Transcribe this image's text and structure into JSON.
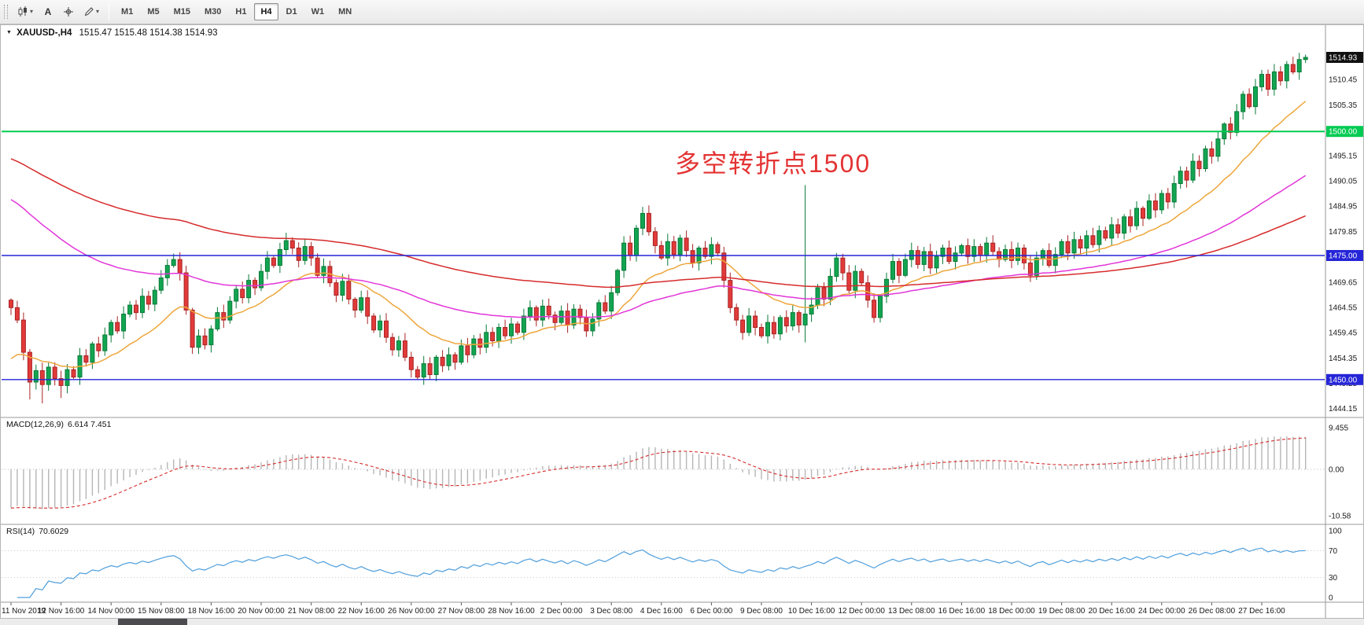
{
  "colors": {
    "up": "#12a551",
    "up_border": "#0a7a38",
    "down": "#e23a3a",
    "down_border": "#a82323",
    "ma_fast": "#eda63c",
    "ma_mid": "#e236d8",
    "ma_slow": "#d62b2b",
    "macd_hist": "#b6b6b6",
    "macd_signal": "#d62b2b",
    "rsi_line": "#4f9fdc",
    "hline_green": "#00cb52",
    "hline_blue": "#2525d8",
    "badge_black": "#101010",
    "badge_text": "#ffffff",
    "axis_text": "#1a1a1a",
    "separator": "#9a9a9a"
  },
  "icons": {
    "triangle_down": "▼",
    "caret_down": "▾"
  },
  "toolbar": {
    "timeframes": [
      "M1",
      "M5",
      "M15",
      "M30",
      "H1",
      "H4",
      "D1",
      "W1",
      "MN"
    ],
    "active_timeframe": "H4",
    "left_buttons": [
      {
        "name": "chart-type-button",
        "icon": "candlestick-chart-icon",
        "label": "",
        "caret": true
      },
      {
        "name": "text-tool-button",
        "icon": "",
        "label": "A",
        "caret": false
      },
      {
        "name": "crosshair-tool-button",
        "icon": "crosshair-icon",
        "label": "",
        "caret": false
      },
      {
        "name": "draw-tool-button",
        "icon": "pencil-icon",
        "label": "",
        "caret": true
      }
    ]
  },
  "chart": {
    "header": {
      "symbol": "XAUUSD-,H4",
      "ohlc": "1515.47 1515.48 1514.38 1514.93"
    },
    "annotation": {
      "text": "多空转折点1500"
    }
  },
  "panels": {
    "macd": {
      "label": "MACD(12,26,9)",
      "values": "6.614 7.451",
      "axis_labels": [
        "9.455",
        "0.00",
        "-10.58"
      ],
      "axis_values": [
        9.455,
        0,
        -10.58
      ]
    },
    "rsi": {
      "label": "RSI(14)",
      "value": "70.6029",
      "axis_labels": [
        "100",
        "70",
        "30",
        "0"
      ],
      "axis_values": [
        100,
        70,
        30,
        0
      ],
      "levels": [
        70,
        30
      ]
    }
  },
  "chart_data": {
    "type": "candlestick",
    "title": "XAUUSD- H4",
    "y_range": [
      1443.0,
      1519.2
    ],
    "open_first": 1466.0,
    "closes": [
      1464.5,
      1462.0,
      1455.5,
      1449.5,
      1451.8,
      1449.0,
      1452.5,
      1450.2,
      1448.8,
      1452.0,
      1450.5,
      1454.8,
      1453.5,
      1457.2,
      1455.8,
      1459.0,
      1461.5,
      1459.8,
      1463.2,
      1465.0,
      1463.5,
      1466.8,
      1465.2,
      1468.0,
      1470.5,
      1473.0,
      1474.2,
      1471.5,
      1464.0,
      1456.5,
      1458.8,
      1457.0,
      1460.2,
      1463.5,
      1462.0,
      1465.8,
      1468.2,
      1466.5,
      1470.0,
      1468.5,
      1471.8,
      1474.5,
      1473.0,
      1476.2,
      1478.0,
      1476.5,
      1474.0,
      1476.8,
      1474.5,
      1471.0,
      1472.8,
      1469.5,
      1467.0,
      1469.8,
      1466.2,
      1464.0,
      1466.5,
      1462.8,
      1460.0,
      1461.8,
      1458.5,
      1456.0,
      1457.8,
      1454.5,
      1452.0,
      1450.5,
      1453.2,
      1451.0,
      1454.5,
      1452.8,
      1455.0,
      1453.5,
      1456.8,
      1455.0,
      1458.2,
      1456.5,
      1459.5,
      1457.8,
      1460.5,
      1458.8,
      1461.2,
      1459.5,
      1462.8,
      1464.5,
      1462.0,
      1464.8,
      1463.0,
      1461.5,
      1463.8,
      1461.0,
      1464.2,
      1462.5,
      1459.8,
      1462.2,
      1465.5,
      1463.8,
      1467.5,
      1472.0,
      1477.5,
      1475.0,
      1480.5,
      1483.5,
      1479.8,
      1477.0,
      1474.5,
      1477.8,
      1475.2,
      1478.5,
      1476.0,
      1473.5,
      1476.5,
      1474.8,
      1477.2,
      1475.5,
      1470.0,
      1464.5,
      1462.0,
      1459.5,
      1462.8,
      1460.5,
      1458.8,
      1461.5,
      1459.2,
      1462.5,
      1460.8,
      1463.5,
      1461.0,
      1463.2,
      1465.0,
      1468.5,
      1466.2,
      1470.8,
      1474.5,
      1471.5,
      1468.0,
      1471.8,
      1469.5,
      1466.0,
      1462.5,
      1466.8,
      1470.2,
      1473.8,
      1471.0,
      1474.2,
      1476.0,
      1473.2,
      1475.8,
      1472.5,
      1474.8,
      1476.5,
      1473.8,
      1475.5,
      1477.0,
      1474.8,
      1476.8,
      1475.0,
      1477.5,
      1475.8,
      1474.2,
      1476.2,
      1474.0,
      1476.5,
      1473.5,
      1471.0,
      1474.5,
      1476.0,
      1473.0,
      1475.2,
      1477.8,
      1475.5,
      1478.2,
      1476.5,
      1479.0,
      1477.2,
      1480.0,
      1478.5,
      1481.2,
      1479.5,
      1482.8,
      1481.0,
      1484.5,
      1482.5,
      1486.0,
      1484.2,
      1487.5,
      1485.8,
      1489.5,
      1492.0,
      1490.2,
      1494.0,
      1492.5,
      1496.5,
      1495.0,
      1498.5,
      1501.5,
      1499.8,
      1504.0,
      1507.5,
      1505.0,
      1509.0,
      1511.5,
      1508.5,
      1512.0,
      1510.2,
      1513.5,
      1512.0,
      1514.5,
      1514.93
    ],
    "wick_overrides": {
      "3": {
        "l": 1446.0
      },
      "5": {
        "l": 1445.2
      },
      "8": {
        "l": 1446.3
      },
      "26": {
        "h": 1475.4
      },
      "44": {
        "h": 1479.6
      },
      "101": {
        "h": 1484.8
      },
      "127": {
        "h": 1489.2,
        "l": 1457.5
      },
      "139": {
        "l": 1461.5
      },
      "207": {
        "h": 1515.48
      }
    },
    "price_axis_labels": [
      1510.45,
      1505.35,
      1495.15,
      1490.05,
      1484.95,
      1479.85,
      1469.65,
      1464.55,
      1459.45,
      1454.35,
      1449.25,
      1444.15
    ],
    "hlines": [
      {
        "price": 1500.0,
        "label": "1500.00",
        "colorKey": "hline_green"
      },
      {
        "price": 1475.0,
        "label": "1475.00",
        "colorKey": "hline_blue"
      },
      {
        "price": 1450.0,
        "label": "1450.00",
        "colorKey": "hline_blue"
      }
    ],
    "current_price": {
      "value": 1514.93,
      "label": "1514.93"
    },
    "time_labels": [
      "11 Nov 2019",
      "12 Nov 16:00",
      "14 Nov 00:00",
      "15 Nov 08:00",
      "18 Nov 16:00",
      "20 Nov 00:00",
      "21 Nov 08:00",
      "22 Nov 16:00",
      "26 Nov 00:00",
      "27 Nov 08:00",
      "28 Nov 16:00",
      "2 Dec 00:00",
      "3 Dec 08:00",
      "4 Dec 16:00",
      "6 Dec 00:00",
      "9 Dec 08:00",
      "10 Dec 16:00",
      "12 Dec 00:00",
      "13 Dec 08:00",
      "16 Dec 16:00",
      "18 Dec 00:00",
      "19 Dec 08:00",
      "20 Dec 16:00",
      "24 Dec 00:00",
      "26 Dec 08:00",
      "27 Dec 16:00"
    ],
    "moving_averages": [
      {
        "period": 18,
        "init": 1453,
        "colorKey": "ma_fast"
      },
      {
        "period": 60,
        "init": 1487,
        "colorKey": "ma_mid"
      },
      {
        "period": 120,
        "init": 1495,
        "colorKey": "ma_slow"
      }
    ],
    "macd_init_offset": 9.5,
    "rsi_period": 14
  }
}
